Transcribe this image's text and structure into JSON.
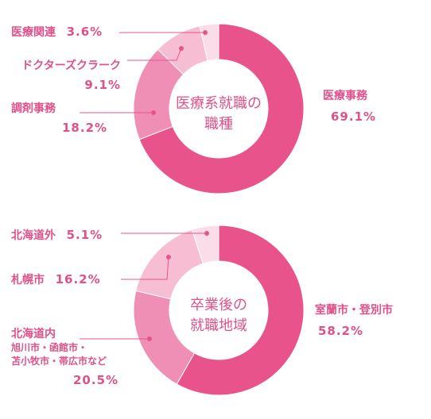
{
  "chart_data": [
    {
      "type": "pie",
      "title": "医療系就職の職種",
      "title_lines": [
        "医療系就職の",
        "職種"
      ],
      "categories": [
        "医療事務",
        "調剤事務",
        "ドクターズクラーク",
        "医療関連"
      ],
      "values": [
        69.1,
        18.2,
        9.1,
        3.6
      ],
      "value_labels": [
        "69.1%",
        "18.2%",
        "9.1%",
        "3.6%"
      ],
      "colors": [
        "#e9538c",
        "#f08fb6",
        "#f6bdd3",
        "#fbdde9"
      ],
      "legend": "none"
    },
    {
      "type": "pie",
      "title": "卒業後の就職地域",
      "title_lines": [
        "卒業後の",
        "就職地域"
      ],
      "categories": [
        "室蘭市・登別市",
        "北海道内",
        "札幌市",
        "北海道外"
      ],
      "category_notes": [
        "",
        "旭川市・函館市・苫小牧市・帯広市など",
        "",
        ""
      ],
      "note_lines": [
        "旭川市・函館市・",
        "苫小牧市・帯広市など"
      ],
      "values": [
        58.2,
        20.5,
        16.2,
        5.1
      ],
      "value_labels": [
        "58.2%",
        "20.5%",
        "16.2%",
        "5.1%"
      ],
      "colors": [
        "#e9538c",
        "#f08fb6",
        "#f6bdd3",
        "#fbdde9"
      ],
      "legend": "none"
    }
  ]
}
